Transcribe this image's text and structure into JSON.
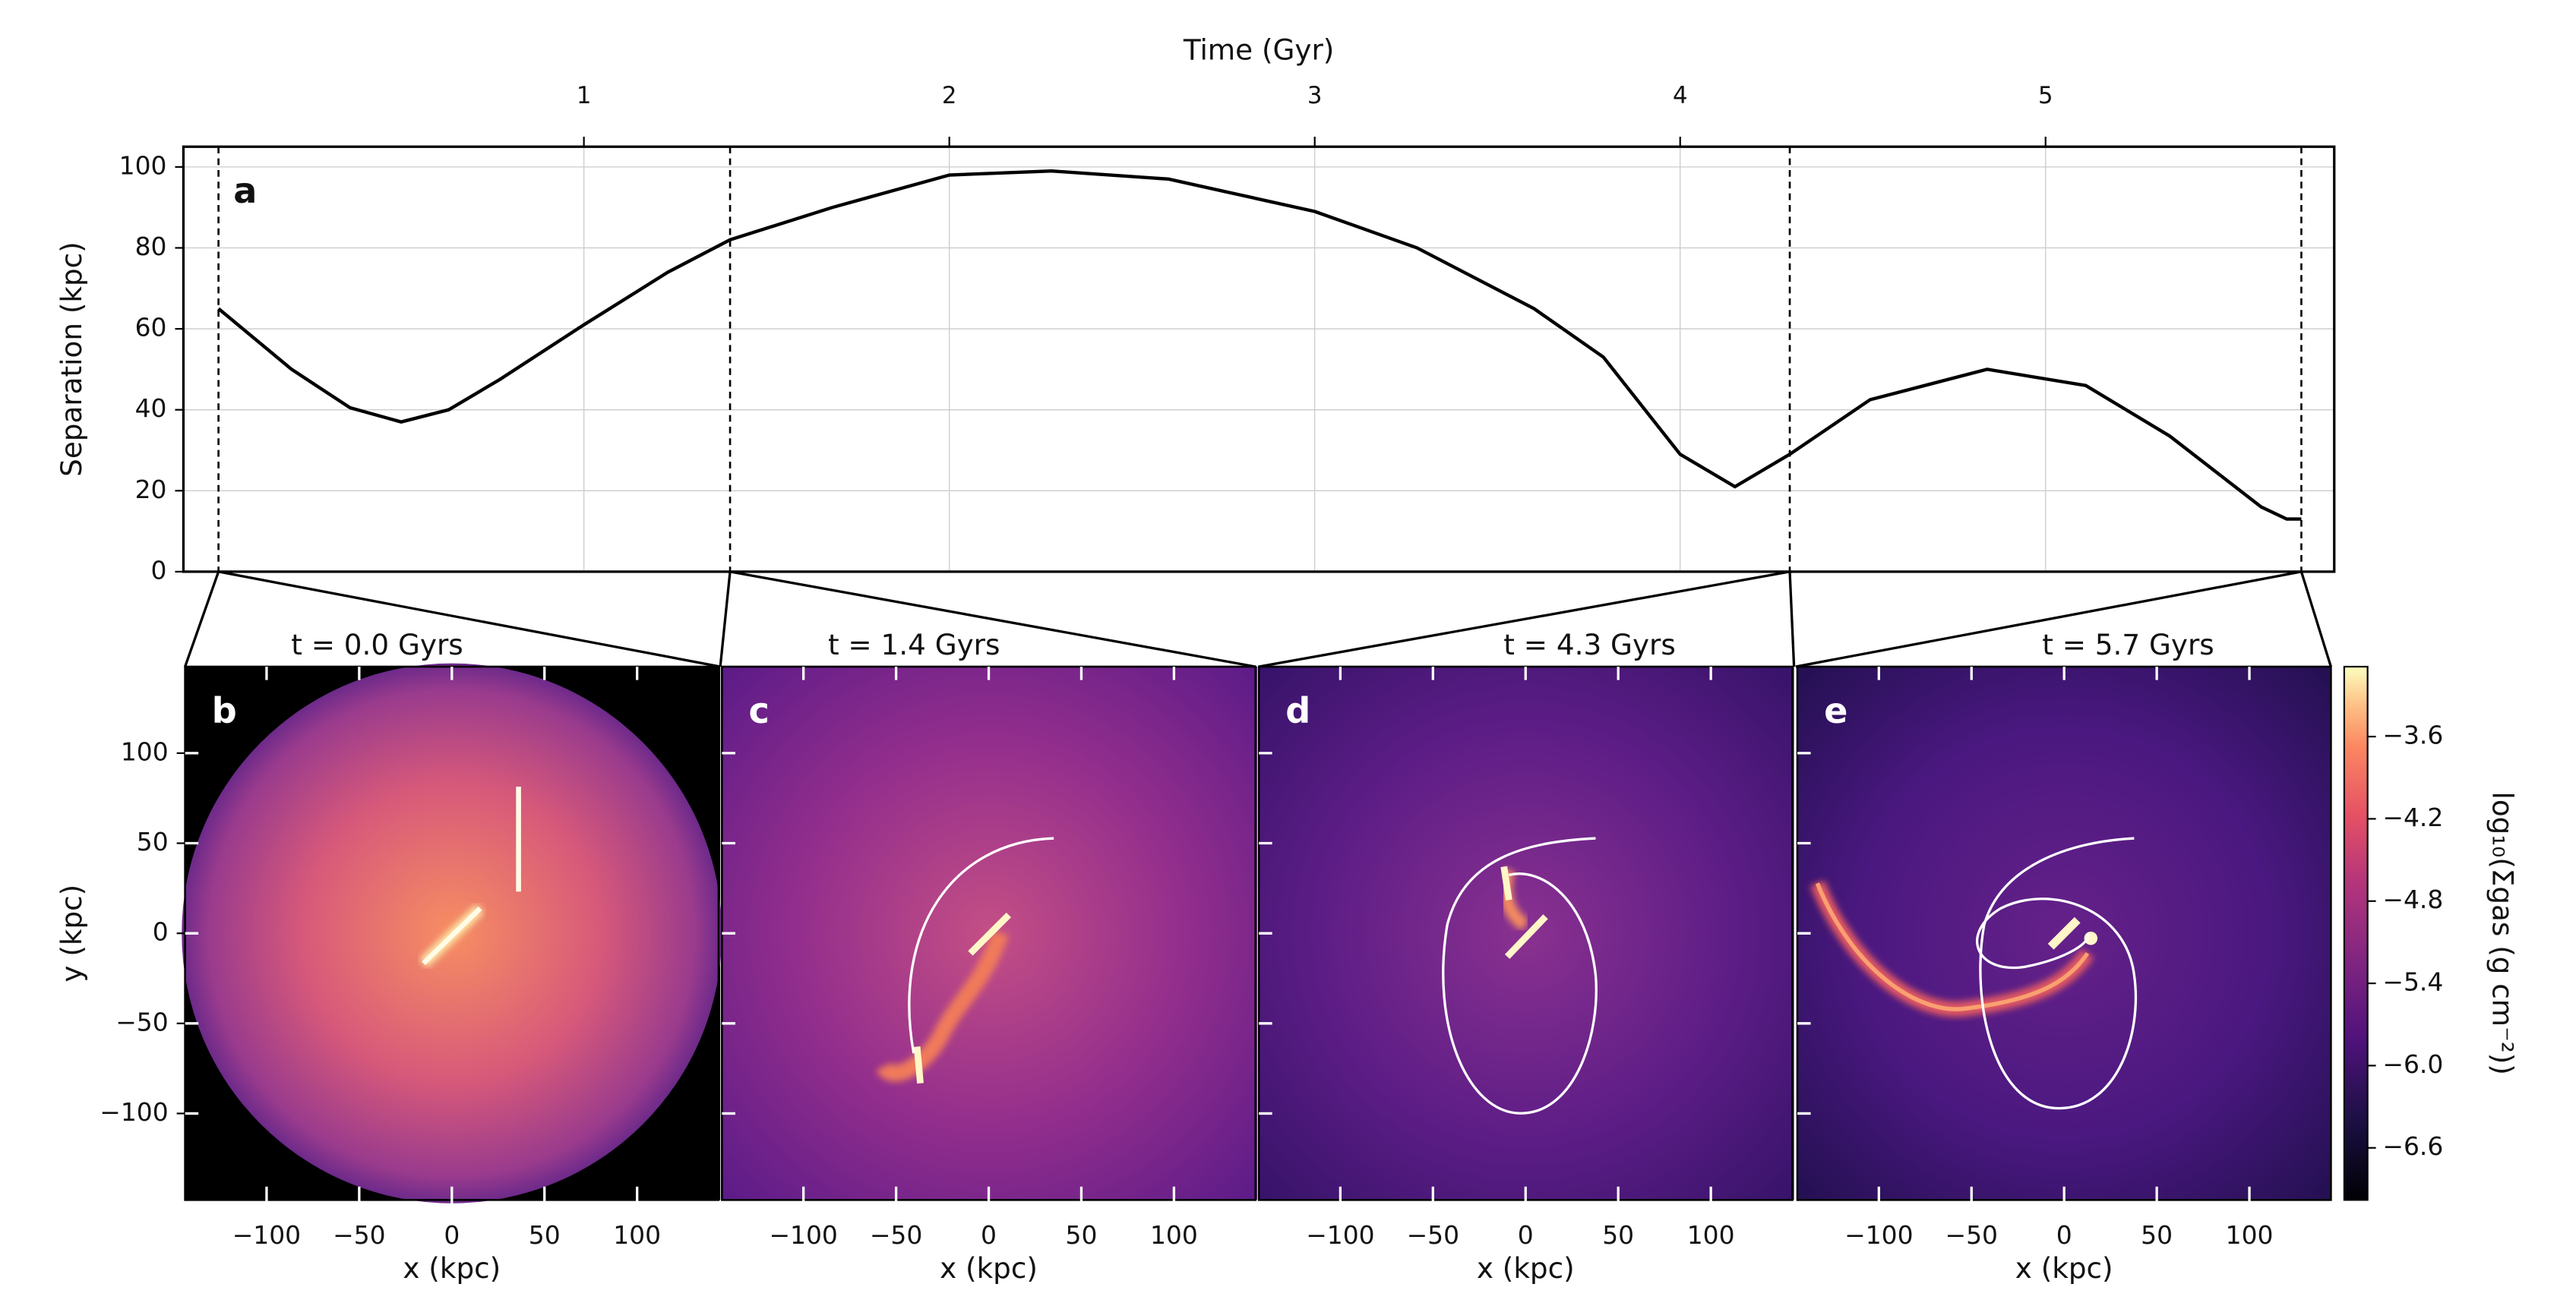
{
  "chart_data": [
    {
      "type": "line",
      "panel_label": "a",
      "xlabel": "Time (Gyr)",
      "ylabel": "Separation (kpc)",
      "x": [
        0,
        0.2,
        0.36,
        0.5,
        0.63,
        0.77,
        1.0,
        1.23,
        1.4,
        1.68,
        2.0,
        2.28,
        2.6,
        3.0,
        3.28,
        3.6,
        3.79,
        4.0,
        4.15,
        4.3,
        4.52,
        4.84,
        5.11,
        5.34,
        5.59,
        5.66,
        5.7
      ],
      "values": [
        65,
        50,
        40.5,
        37,
        40,
        47.5,
        61,
        74,
        82,
        90,
        98,
        99,
        97,
        89,
        80,
        65,
        53,
        29,
        21,
        29,
        42.5,
        50,
        46,
        33.5,
        16,
        13,
        13
      ],
      "color": "#000000",
      "xlim": [
        -0.096,
        5.79
      ],
      "xticks": [
        1,
        2,
        3,
        4,
        5
      ],
      "ylim": [
        0,
        105
      ],
      "yticks": [
        0,
        20,
        40,
        60,
        80,
        100
      ],
      "grid": true,
      "snapshot_times": [
        0.0,
        1.4,
        4.3,
        5.7
      ]
    },
    {
      "type": "image",
      "panel_label": "b",
      "title": "t = 0.0 Gyrs",
      "xlabel": "x (kpc)",
      "ylabel": "y (kpc)",
      "xlim": [
        -144,
        144
      ],
      "ylim": [
        -148,
        148
      ],
      "xticks": [
        {
          "value": -100,
          "label": "−100"
        },
        {
          "value": -50,
          "label": "−50"
        },
        0,
        50,
        100
      ],
      "yticks": [
        {
          "value": -100,
          "label": "−100"
        },
        {
          "value": -50,
          "label": "−50"
        },
        0,
        50,
        100
      ]
    },
    {
      "type": "image",
      "panel_label": "c",
      "title": "t = 1.4 Gyrs",
      "xlabel": "x (kpc)",
      "xlim": [
        -144,
        144
      ],
      "ylim": [
        -148,
        148
      ],
      "xticks": [
        {
          "value": -100,
          "label": "−100"
        },
        {
          "value": -50,
          "label": "−50"
        },
        0,
        50,
        100
      ]
    },
    {
      "type": "image",
      "panel_label": "d",
      "title": "t = 4.3 Gyrs",
      "xlabel": "x (kpc)",
      "xlim": [
        -144,
        144
      ],
      "ylim": [
        -148,
        148
      ],
      "xticks": [
        {
          "value": -100,
          "label": "−100"
        },
        {
          "value": -50,
          "label": "−50"
        },
        0,
        50,
        100
      ]
    },
    {
      "type": "image",
      "panel_label": "e",
      "title": "t = 5.7 Gyrs",
      "xlabel": "x (kpc)",
      "xlim": [
        -144,
        144
      ],
      "ylim": [
        -148,
        148
      ],
      "xticks": [
        {
          "value": -100,
          "label": "−100"
        },
        {
          "value": -50,
          "label": "−50"
        },
        0,
        50,
        100
      ]
    },
    {
      "type": "colorbar",
      "label": "log₁₀(Σgas (g cm⁻²))",
      "clim": [
        -6.98,
        -3.09
      ],
      "ticks": [
        {
          "value": -3.6,
          "label": "−3.6"
        },
        {
          "value": -4.2,
          "label": "−4.2"
        },
        {
          "value": -4.8,
          "label": "−4.8"
        },
        {
          "value": -5.4,
          "label": "−5.4"
        },
        {
          "value": -6.0,
          "label": "−6.0"
        },
        {
          "value": -6.6,
          "label": "−6.6"
        }
      ]
    }
  ]
}
